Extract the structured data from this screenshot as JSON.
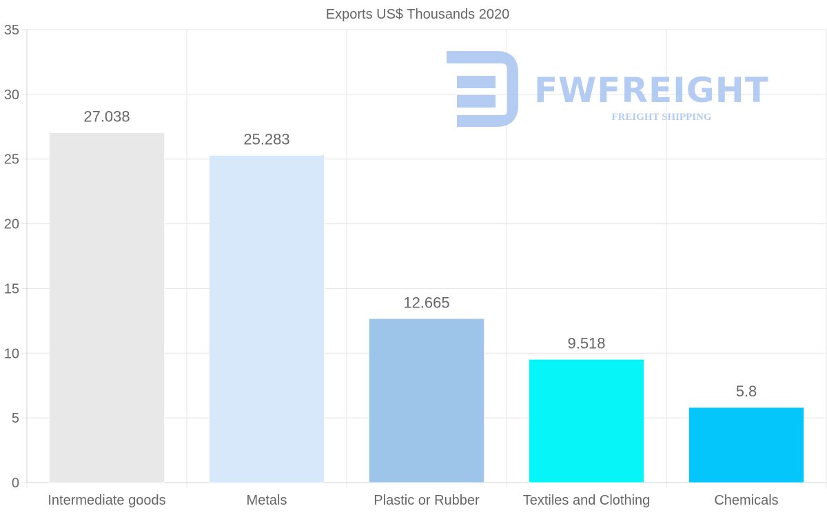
{
  "chart_data": {
    "type": "bar",
    "title": "Exports US$ Thousands 2020",
    "categories": [
      "Intermediate goods",
      "Metals",
      "Plastic or Rubber",
      "Textiles and Clothing",
      "Chemicals"
    ],
    "values": [
      27.038,
      25.283,
      12.665,
      9.518,
      5.8
    ],
    "value_labels": [
      "27.038",
      "25.283",
      "12.665",
      "9.518",
      "5.8"
    ],
    "colors": [
      "#e8e8e8",
      "#d6e8fa",
      "#9dc5ea",
      "#05f5f8",
      "#05c6fb"
    ],
    "ylim": [
      0,
      35
    ],
    "yticks": [
      0,
      5,
      10,
      15,
      20,
      25,
      30,
      35
    ],
    "grid": true,
    "legend": "none",
    "xlabel": "",
    "ylabel": ""
  },
  "watermark": {
    "brand": "FWFREIGHT",
    "tagline": "FREIGHT SHIPPING",
    "color": "#a8c4f0"
  }
}
